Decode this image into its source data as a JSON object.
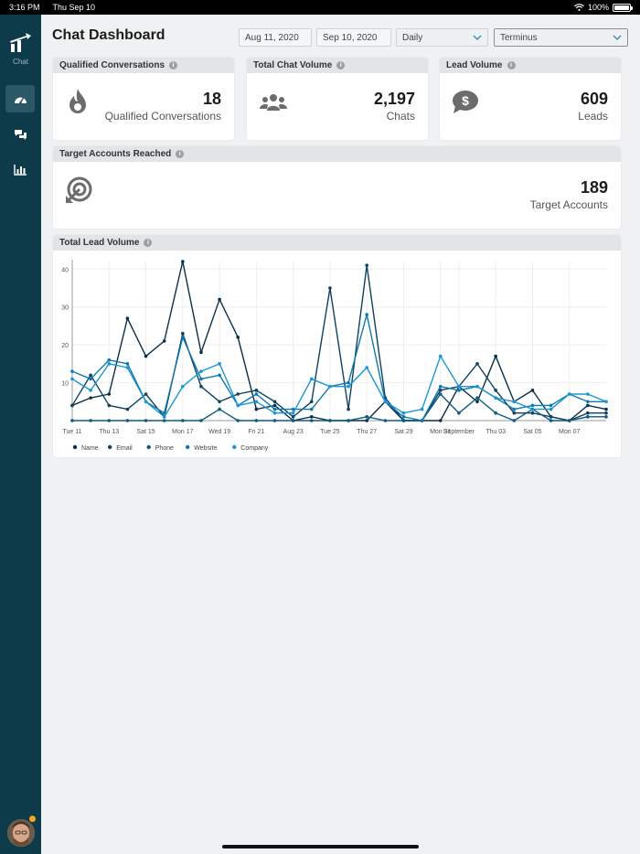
{
  "status": {
    "time": "3:16 PM",
    "date": "Thu Sep 10",
    "battery": "100%"
  },
  "sidebar": {
    "logo_label": "Chat"
  },
  "header": {
    "title": "Chat Dashboard",
    "start_date": "Aug 11, 2020",
    "end_date": "Sep 10, 2020",
    "interval": "Daily",
    "account": "Terminus"
  },
  "kpis": {
    "qualified": {
      "title": "Qualified Conversations",
      "value": "18",
      "label": "Qualified Conversations"
    },
    "chats": {
      "title": "Total Chat Volume",
      "value": "2,197",
      "label": "Chats"
    },
    "leads": {
      "title": "Lead Volume",
      "value": "609",
      "label": "Leads"
    },
    "target": {
      "title": "Target Accounts Reached",
      "value": "189",
      "label": "Target Accounts"
    }
  },
  "lead_chart": {
    "title": "Total Lead Volume"
  },
  "colors": {
    "sidebar": "#0d3b4a",
    "Name": "#0b2f47",
    "Email": "#0f4160",
    "Phone": "#0e5a80",
    "Website": "#0f79ae",
    "Company": "#1a95d6"
  },
  "chart_data": {
    "type": "line",
    "title": "Total Lead Volume",
    "xlabel": "",
    "ylabel": "",
    "ylim": [
      0,
      42
    ],
    "yticks": [
      10,
      20,
      30,
      40
    ],
    "grid": true,
    "legend": "bottom-left",
    "x_tick_labels": [
      "Tue 11",
      "Thu 13",
      "Sat 15",
      "Mon 17",
      "Wed 19",
      "Fri 21",
      "Aug 23",
      "Tue 25",
      "Thu 27",
      "Sat 29",
      "Mon 31",
      "September",
      "Thu 03",
      "Sat 05",
      "Mon 07"
    ],
    "x_tick_index": [
      0,
      2,
      4,
      6,
      8,
      10,
      12,
      14,
      16,
      18,
      20,
      21,
      23,
      25,
      27
    ],
    "num_points": 30,
    "series": [
      {
        "name": "Name",
        "values": [
          4,
          6,
          7,
          27,
          17,
          21,
          42,
          18,
          32,
          22,
          3,
          4,
          0,
          1,
          0,
          0,
          0,
          5,
          0,
          0,
          0,
          9,
          5,
          17,
          5,
          8,
          1,
          0,
          4,
          3
        ]
      },
      {
        "name": "Email",
        "values": [
          4,
          12,
          4,
          3,
          7,
          1,
          23,
          9,
          5,
          7,
          8,
          5,
          1,
          5,
          35,
          3,
          41,
          6,
          0,
          0,
          8,
          9,
          15,
          8,
          2,
          2,
          1,
          0,
          2,
          2
        ]
      },
      {
        "name": "Phone",
        "values": [
          0,
          0,
          0,
          0,
          0,
          0,
          0,
          0,
          3,
          0,
          0,
          0,
          0,
          0,
          0,
          0,
          1,
          0,
          0,
          0,
          7,
          2,
          6,
          2,
          0,
          3,
          0,
          0,
          1,
          1
        ]
      },
      {
        "name": "Website",
        "values": [
          13,
          11,
          16,
          15,
          5,
          2,
          22,
          11,
          12,
          4,
          7,
          3,
          3,
          3,
          9,
          10,
          28,
          5,
          1,
          0,
          9,
          8,
          9,
          6,
          3,
          4,
          4,
          7,
          5,
          5
        ]
      },
      {
        "name": "Company",
        "values": [
          11,
          8,
          15,
          14,
          5,
          1,
          9,
          13,
          15,
          4,
          5,
          2,
          2,
          11,
          9,
          9,
          14,
          5,
          2,
          3,
          17,
          9,
          9,
          6,
          5,
          3,
          3,
          7,
          7,
          5
        ]
      }
    ]
  }
}
